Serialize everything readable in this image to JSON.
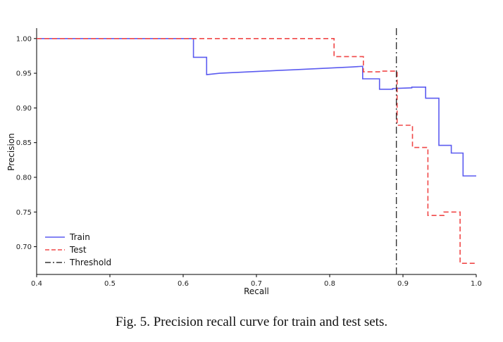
{
  "caption": "Fig. 5.  Precision recall curve for train and test sets.",
  "chart_data": {
    "type": "line",
    "xlabel": "Recall",
    "ylabel": "Precision",
    "xlim": [
      0.4,
      1.0
    ],
    "ylim": [
      0.66,
      1.015
    ],
    "xticks": [
      "0.4",
      "0.5",
      "0.6",
      "0.7",
      "0.8",
      "0.9",
      "1.0"
    ],
    "yticks": [
      "0.70",
      "0.75",
      "0.80",
      "0.85",
      "0.90",
      "0.95",
      "1.00"
    ],
    "grid": false,
    "legend_position": "bottom-left",
    "series": [
      {
        "name": "Train",
        "color": "#5b5bf0",
        "style": "solid",
        "x": [
          0.4,
          0.614,
          0.614,
          0.632,
          0.632,
          0.65,
          0.67,
          0.69,
          0.71,
          0.73,
          0.75,
          0.77,
          0.79,
          0.81,
          0.83,
          0.845,
          0.845,
          0.868,
          0.868,
          0.886,
          0.886,
          0.912,
          0.912,
          0.931,
          0.931,
          0.949,
          0.949,
          0.966,
          0.966,
          0.982,
          0.982,
          1.0
        ],
        "y": [
          1.0,
          1.0,
          0.973,
          0.973,
          0.948,
          0.95,
          0.951,
          0.952,
          0.953,
          0.954,
          0.955,
          0.956,
          0.957,
          0.958,
          0.959,
          0.96,
          0.942,
          0.942,
          0.927,
          0.927,
          0.928,
          0.929,
          0.93,
          0.93,
          0.914,
          0.914,
          0.846,
          0.846,
          0.835,
          0.835,
          0.802,
          0.802
        ]
      },
      {
        "name": "Test",
        "color": "#f04848",
        "style": "dashed",
        "x": [
          0.4,
          0.806,
          0.806,
          0.846,
          0.846,
          0.868,
          0.868,
          0.892,
          0.892,
          0.913,
          0.913,
          0.934,
          0.934,
          0.956,
          0.956,
          0.978,
          0.978,
          1.0
        ],
        "y": [
          1.0,
          1.0,
          0.974,
          0.974,
          0.952,
          0.952,
          0.953,
          0.953,
          0.875,
          0.875,
          0.843,
          0.843,
          0.745,
          0.745,
          0.75,
          0.75,
          0.676,
          0.676
        ]
      }
    ],
    "threshold": {
      "name": "Threshold",
      "x": 0.891,
      "color": "#333333",
      "style": "dashdot"
    }
  }
}
